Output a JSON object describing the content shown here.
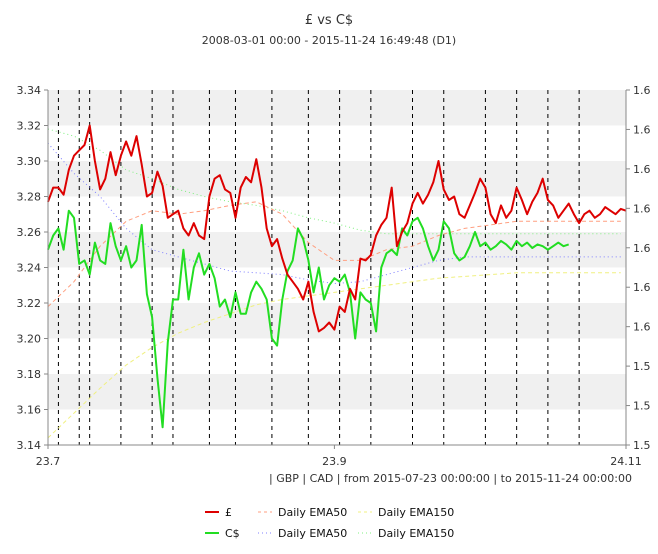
{
  "chart_data": {
    "type": "line",
    "title": "£ vs C$",
    "subtitle": "2008-03-01 00:00 - 2015-11-24 16:49:48 (D1)",
    "footer": "| GBP | CAD | from 2015-07-23 00:00:00 | to 2015-11-24 00:00:00",
    "x_ticks": [
      "23.7",
      "23.9",
      "24.11"
    ],
    "y_left_ticks": [
      "3.14",
      "3.16",
      "3.18",
      "3.20",
      "3.22",
      "3.24",
      "3.26",
      "3.28",
      "3.30",
      "3.32",
      "3.34"
    ],
    "y_right_ticks": [
      "1.5",
      "1.5",
      "1.5",
      "1.6",
      "1.6",
      "1.6",
      "1.6",
      "1.6",
      "1.6",
      "1.6"
    ],
    "ylim_left": [
      3.14,
      3.34
    ],
    "ylim_right": [
      1.5,
      1.7
    ],
    "grid": "alternating horizontal bands",
    "colors": {
      "gbp": "#dd0000",
      "cad": "#22dd22",
      "gbp_ema50": "#ff9f80",
      "cad_ema50": "#8080ff",
      "gbp_ema150": "#f0f080",
      "cad_ema150": "#80f080",
      "band": "#f0f0f0",
      "vline": "#000000"
    },
    "vlines_x": [
      0.02,
      0.06,
      0.08,
      0.14,
      0.2,
      0.24,
      0.31,
      0.36,
      0.43,
      0.5,
      0.56,
      0.62,
      0.7,
      0.76,
      0.84,
      0.9,
      0.96,
      1.02
    ],
    "legend": [
      {
        "label": "£",
        "series": "gbp"
      },
      {
        "label": "Daily EMA50",
        "series": "gbp_ema50"
      },
      {
        "label": "Daily EMA150",
        "series": "gbp_ema150"
      },
      {
        "label": "C$",
        "series": "cad"
      },
      {
        "label": "Daily EMA50",
        "series": "cad_ema50"
      },
      {
        "label": "Daily EMA150",
        "series": "cad_ema150"
      }
    ],
    "series": [
      {
        "key": "gbp",
        "axis": "left",
        "style": "solid",
        "width": 2,
        "x": [
          0.0,
          0.01,
          0.02,
          0.03,
          0.04,
          0.05,
          0.06,
          0.07,
          0.08,
          0.09,
          0.1,
          0.11,
          0.12,
          0.13,
          0.14,
          0.15,
          0.16,
          0.17,
          0.18,
          0.19,
          0.2,
          0.21,
          0.22,
          0.23,
          0.24,
          0.25,
          0.26,
          0.27,
          0.28,
          0.29,
          0.3,
          0.31,
          0.32,
          0.33,
          0.34,
          0.35,
          0.36,
          0.37,
          0.38,
          0.39,
          0.4,
          0.41,
          0.42,
          0.43,
          0.44,
          0.45,
          0.46,
          0.47,
          0.48,
          0.49,
          0.5,
          0.51,
          0.52,
          0.53,
          0.54,
          0.55,
          0.56,
          0.57,
          0.58,
          0.59,
          0.6,
          0.61,
          0.62,
          0.63,
          0.64,
          0.65,
          0.66,
          0.67,
          0.68,
          0.69,
          0.7,
          0.71,
          0.72,
          0.73,
          0.74,
          0.75,
          0.76,
          0.77,
          0.78,
          0.79,
          0.8,
          0.81,
          0.82,
          0.83,
          0.84,
          0.85,
          0.86,
          0.87,
          0.88,
          0.89,
          0.9,
          0.91,
          0.92,
          0.93,
          0.94,
          0.95,
          0.96,
          0.97,
          0.98,
          0.99,
          1.0,
          1.01,
          1.02,
          1.03,
          1.04,
          1.05,
          1.06,
          1.07,
          1.08,
          1.09,
          1.1,
          1.11
        ],
        "y": [
          3.277,
          3.285,
          3.285,
          3.281,
          3.295,
          3.303,
          3.306,
          3.309,
          3.32,
          3.3,
          3.284,
          3.29,
          3.305,
          3.292,
          3.303,
          3.311,
          3.303,
          3.314,
          3.298,
          3.28,
          3.282,
          3.294,
          3.286,
          3.268,
          3.27,
          3.272,
          3.262,
          3.258,
          3.265,
          3.258,
          3.256,
          3.28,
          3.29,
          3.292,
          3.284,
          3.282,
          3.268,
          3.285,
          3.291,
          3.288,
          3.301,
          3.285,
          3.262,
          3.252,
          3.256,
          3.245,
          3.236,
          3.232,
          3.228,
          3.222,
          3.232,
          3.215,
          3.204,
          3.206,
          3.209,
          3.205,
          3.218,
          3.215,
          3.228,
          3.222,
          3.245,
          3.244,
          3.247,
          3.258,
          3.264,
          3.268,
          3.285,
          3.252,
          3.26,
          3.265,
          3.276,
          3.282,
          3.276,
          3.281,
          3.288,
          3.3,
          3.284,
          3.278,
          3.28,
          3.27,
          3.268,
          3.275,
          3.282,
          3.29,
          3.285,
          3.27,
          3.265,
          3.275,
          3.268,
          3.272,
          3.285,
          3.278,
          3.27,
          3.277,
          3.282,
          3.29,
          3.278,
          3.275,
          3.268,
          3.272,
          3.276,
          3.27,
          3.265,
          3.27,
          3.272,
          3.268,
          3.27,
          3.274,
          3.272,
          3.27,
          3.273,
          3.272
        ]
      },
      {
        "key": "cad",
        "axis": "left",
        "style": "solid",
        "width": 2,
        "x": [
          0.0,
          0.01,
          0.02,
          0.03,
          0.04,
          0.05,
          0.06,
          0.07,
          0.08,
          0.09,
          0.1,
          0.11,
          0.12,
          0.13,
          0.14,
          0.15,
          0.16,
          0.17,
          0.18,
          0.19,
          0.2,
          0.21,
          0.22,
          0.23,
          0.24,
          0.25,
          0.26,
          0.27,
          0.28,
          0.29,
          0.3,
          0.31,
          0.32,
          0.33,
          0.34,
          0.35,
          0.36,
          0.37,
          0.38,
          0.39,
          0.4,
          0.41,
          0.42,
          0.43,
          0.44,
          0.45,
          0.46,
          0.47,
          0.48,
          0.49,
          0.5,
          0.51,
          0.52,
          0.53,
          0.54,
          0.55,
          0.56,
          0.57,
          0.58,
          0.59,
          0.6,
          0.61,
          0.62,
          0.63,
          0.64,
          0.65,
          0.66,
          0.67,
          0.68,
          0.69,
          0.7,
          0.71,
          0.72,
          0.73,
          0.74,
          0.75,
          0.76,
          0.77,
          0.78,
          0.79,
          0.8,
          0.81,
          0.82,
          0.83,
          0.84,
          0.85,
          0.86,
          0.87,
          0.88,
          0.89,
          0.9,
          0.91,
          0.92,
          0.93,
          0.94,
          0.95,
          0.96,
          0.97,
          0.98,
          0.99,
          1.0
        ],
        "y": [
          3.25,
          3.258,
          3.262,
          3.25,
          3.272,
          3.268,
          3.242,
          3.244,
          3.236,
          3.254,
          3.244,
          3.242,
          3.265,
          3.252,
          3.244,
          3.252,
          3.24,
          3.244,
          3.264,
          3.225,
          3.212,
          3.178,
          3.15,
          3.198,
          3.222,
          3.222,
          3.25,
          3.222,
          3.24,
          3.248,
          3.236,
          3.242,
          3.234,
          3.218,
          3.222,
          3.212,
          3.226,
          3.214,
          3.214,
          3.226,
          3.232,
          3.228,
          3.222,
          3.2,
          3.196,
          3.222,
          3.238,
          3.244,
          3.262,
          3.256,
          3.244,
          3.226,
          3.24,
          3.222,
          3.23,
          3.234,
          3.232,
          3.236,
          3.226,
          3.2,
          3.226,
          3.222,
          3.22,
          3.204,
          3.24,
          3.248,
          3.25,
          3.247,
          3.262,
          3.258,
          3.266,
          3.268,
          3.262,
          3.252,
          3.244,
          3.25,
          3.266,
          3.262,
          3.248,
          3.244,
          3.246,
          3.252,
          3.26,
          3.252,
          3.254,
          3.25,
          3.252,
          3.255,
          3.253,
          3.25,
          3.255,
          3.252,
          3.254,
          3.251,
          3.253,
          3.252,
          3.25,
          3.252,
          3.254,
          3.252,
          3.253
        ]
      },
      {
        "key": "gbp_ema50",
        "axis": "left",
        "style": "dashed",
        "width": 1,
        "x": [
          0.0,
          0.05,
          0.1,
          0.15,
          0.2,
          0.25,
          0.3,
          0.35,
          0.4,
          0.45,
          0.5,
          0.55,
          0.6,
          0.65,
          0.7,
          0.75,
          0.8,
          0.85,
          0.9,
          0.95,
          1.0,
          1.05,
          1.1
        ],
        "y": [
          3.218,
          3.232,
          3.252,
          3.266,
          3.272,
          3.27,
          3.272,
          3.275,
          3.277,
          3.27,
          3.254,
          3.244,
          3.244,
          3.25,
          3.252,
          3.258,
          3.262,
          3.264,
          3.266,
          3.266,
          3.266,
          3.266,
          3.266
        ]
      },
      {
        "key": "cad_ema50",
        "axis": "left",
        "style": "dotted",
        "width": 1,
        "x": [
          0.0,
          0.05,
          0.1,
          0.15,
          0.2,
          0.25,
          0.3,
          0.35,
          0.4,
          0.45,
          0.5,
          0.55,
          0.6,
          0.65,
          0.7,
          0.75,
          0.8,
          0.85,
          0.9,
          0.95,
          1.0,
          1.05,
          1.1
        ],
        "y": [
          3.31,
          3.293,
          3.28,
          3.262,
          3.25,
          3.246,
          3.242,
          3.238,
          3.237,
          3.236,
          3.233,
          3.231,
          3.232,
          3.236,
          3.24,
          3.244,
          3.246,
          3.246,
          3.246,
          3.246,
          3.246,
          3.246,
          3.246
        ]
      },
      {
        "key": "gbp_ema150",
        "axis": "left",
        "style": "dashed",
        "width": 1,
        "x": [
          0.0,
          0.05,
          0.1,
          0.15,
          0.2,
          0.25,
          0.3,
          0.35,
          0.4,
          0.45,
          0.5,
          0.55,
          0.6,
          0.65,
          0.7,
          0.75,
          0.8,
          0.85,
          0.9,
          0.95,
          1.0,
          1.05,
          1.1
        ],
        "y": [
          3.144,
          3.158,
          3.172,
          3.185,
          3.195,
          3.203,
          3.209,
          3.214,
          3.219,
          3.222,
          3.224,
          3.226,
          3.228,
          3.23,
          3.232,
          3.234,
          3.235,
          3.236,
          3.237,
          3.237,
          3.237,
          3.237,
          3.237
        ]
      },
      {
        "key": "cad_ema150",
        "axis": "left",
        "style": "dotted",
        "width": 1,
        "x": [
          0.0,
          0.05,
          0.1,
          0.15,
          0.2,
          0.25,
          0.3,
          0.35,
          0.4,
          0.45,
          0.5,
          0.55,
          0.6,
          0.65,
          0.7,
          0.75,
          0.8,
          0.85,
          0.9,
          0.95,
          1.0,
          1.05,
          1.1
        ],
        "y": [
          3.318,
          3.314,
          3.306,
          3.295,
          3.29,
          3.284,
          3.28,
          3.277,
          3.275,
          3.272,
          3.268,
          3.265,
          3.261,
          3.259,
          3.259,
          3.259,
          3.259,
          3.259,
          3.259,
          3.259,
          3.259,
          3.259,
          3.259
        ]
      }
    ]
  }
}
